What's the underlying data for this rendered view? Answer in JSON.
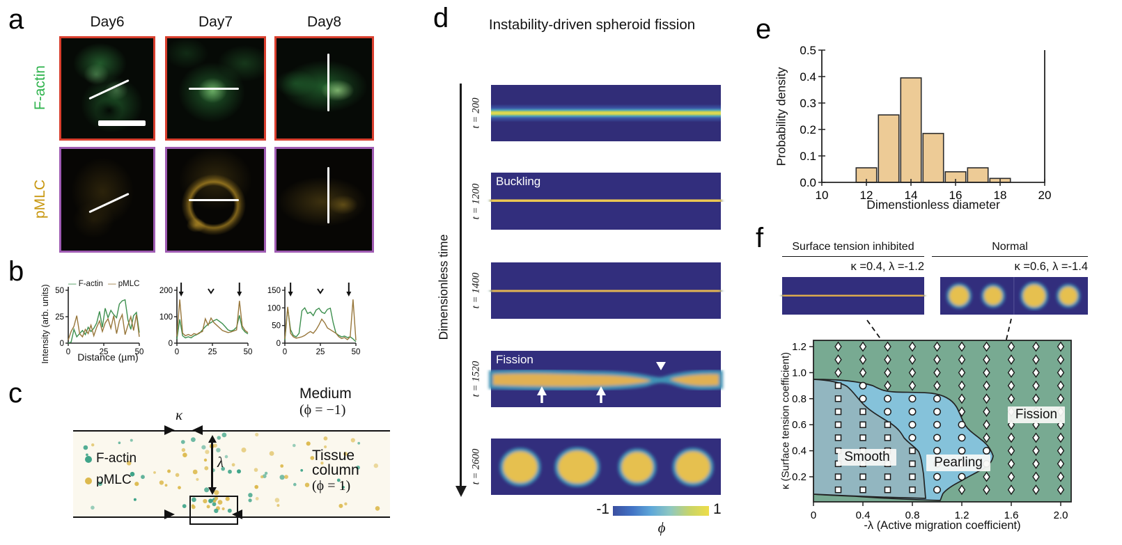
{
  "panels": {
    "a": {
      "label": "a",
      "columns": [
        "Day6",
        "Day7",
        "Day8"
      ],
      "rows": [
        {
          "label": "F-actin",
          "label_color": "#2fb34d",
          "frame_color": "#d93f2e"
        },
        {
          "label": "pMLC",
          "label_color": "#c8970f",
          "frame_color": "#9f5cb3"
        }
      ]
    },
    "b": {
      "label": "b",
      "ylabel": "Intensity (arb. units)",
      "xlabel": "Distance (µm)",
      "legend": [
        {
          "name": "F-actin",
          "color": "#3d8f4e"
        },
        {
          "name": "pMLC",
          "color": "#97763a"
        }
      ]
    },
    "c": {
      "label": "c",
      "kappa": "κ",
      "lambda": "λ",
      "medium_title": "Medium",
      "medium_phi": "(ϕ = −1)",
      "tissue_title_1": "Tissue",
      "tissue_title_2": "column",
      "tissue_phi": "(ϕ = 1)",
      "legend": [
        {
          "name": "F-actin",
          "color": "#3fa489"
        },
        {
          "name": "pMLC",
          "color": "#dcb94d"
        }
      ]
    },
    "d": {
      "label": "d",
      "title": "Instability-driven spheroid fission",
      "axis_label": "Dimensionless time",
      "snapshots": [
        {
          "t_label": "t = 200",
          "overlay": ""
        },
        {
          "t_label": "t = 1200",
          "overlay": "Buckling"
        },
        {
          "t_label": "t = 1400",
          "overlay": ""
        },
        {
          "t_label": "t = 1520",
          "overlay": "Fission"
        },
        {
          "t_label": "t = 2600",
          "overlay": ""
        }
      ],
      "colorbar": {
        "min": "-1",
        "max": "1",
        "symbol": "ϕ"
      }
    },
    "e": {
      "label": "e"
    },
    "f": {
      "label": "f",
      "left_header": "Surface tension inhibited",
      "right_header": "Normal",
      "left_params": "κ =0.4, λ =-1.2",
      "right_params": "κ =0.6, λ =-1.4",
      "region_labels": {
        "smooth": "Smooth",
        "pearling": "Pearling",
        "fission": "Fission"
      }
    }
  },
  "chart_data": [
    {
      "id": "chart-b1",
      "type": "line",
      "xlabel": "Distance (µm)",
      "ylabel": "Intensity (arb. units)",
      "xlim": [
        0,
        50
      ],
      "ylim": [
        0,
        50
      ],
      "xticks": [
        0,
        25,
        50
      ],
      "yticks": [
        0,
        25,
        50
      ],
      "x_step": 2,
      "series": [
        {
          "name": "F-actin",
          "color": "#3d8f4e",
          "values": [
            0,
            1,
            13,
            6,
            9,
            12,
            8,
            15,
            11,
            14,
            19,
            30,
            15,
            33,
            24,
            31,
            27,
            24,
            37,
            40,
            41,
            22,
            13,
            26,
            29,
            10
          ]
        },
        {
          "name": "pMLC",
          "color": "#97763a",
          "values": [
            3,
            11,
            16,
            26,
            9,
            6,
            13,
            9,
            17,
            7,
            15,
            21,
            11,
            19,
            23,
            14,
            26,
            9,
            21,
            27,
            8,
            17,
            25,
            12,
            27,
            6
          ]
        }
      ]
    },
    {
      "id": "chart-b2",
      "type": "line",
      "xlim": [
        0,
        50
      ],
      "ylim": [
        0,
        200
      ],
      "xticks": [
        0,
        25,
        50
      ],
      "yticks": [
        0,
        100,
        200
      ],
      "x_step": 2,
      "arrows": [
        3,
        44
      ],
      "carets": [
        24
      ],
      "series": [
        {
          "name": "F-actin",
          "color": "#3d8f4e",
          "values": [
            15,
            90,
            28,
            20,
            24,
            20,
            28,
            32,
            38,
            50,
            62,
            72,
            78,
            85,
            90,
            82,
            74,
            62,
            50,
            46,
            50,
            60,
            105,
            55,
            42,
            35
          ]
        },
        {
          "name": "pMLC",
          "color": "#97763a",
          "values": [
            25,
            165,
            38,
            28,
            33,
            28,
            36,
            33,
            40,
            44,
            92,
            68,
            95,
            78,
            68,
            58,
            48,
            44,
            40,
            42,
            46,
            50,
            160,
            65,
            48,
            40
          ]
        }
      ]
    },
    {
      "id": "chart-b3",
      "type": "line",
      "xlim": [
        0,
        50
      ],
      "ylim": [
        0,
        150
      ],
      "xticks": [
        0,
        25,
        50
      ],
      "yticks": [
        0,
        50,
        100,
        150
      ],
      "x_step": 2,
      "arrows": [
        4,
        45
      ],
      "carets": [
        25
      ],
      "series": [
        {
          "name": "F-actin",
          "color": "#3d8f4e",
          "values": [
            8,
            100,
            38,
            22,
            18,
            28,
            92,
            100,
            84,
            88,
            78,
            94,
            99,
            88,
            84,
            96,
            99,
            58,
            28,
            22,
            18,
            20,
            16,
            18,
            12,
            4
          ]
        },
        {
          "name": "pMLC",
          "color": "#97763a",
          "values": [
            12,
            103,
            28,
            18,
            14,
            16,
            18,
            22,
            28,
            33,
            28,
            38,
            52,
            68,
            58,
            43,
            38,
            33,
            28,
            18,
            13,
            16,
            10,
            18,
            124,
            8
          ]
        }
      ]
    },
    {
      "id": "chart-e",
      "type": "bar",
      "title": "",
      "xlabel": "Dimenstionless diameter",
      "ylabel": "Probability density",
      "categories": [
        12,
        13,
        14,
        15,
        16,
        17,
        18
      ],
      "values": [
        0.055,
        0.255,
        0.395,
        0.185,
        0.04,
        0.055,
        0.015
      ],
      "xlim": [
        10,
        20
      ],
      "ylim": [
        0,
        0.5
      ],
      "xticks": [
        10,
        12,
        14,
        16,
        18,
        20
      ],
      "ytick_labels": [
        "0.0",
        "0.1",
        "0.2",
        "0.3",
        "0.4",
        "0.5"
      ],
      "bar_color": "#edcb96",
      "bar_edge": "#2c2c2c"
    },
    {
      "id": "chart-f-phase",
      "type": "scatter",
      "xlabel": "-λ (Active migration coefficient)",
      "ylabel": "κ (Surface tension coefficient)",
      "xlim": [
        0,
        2.08
      ],
      "ylim": [
        0,
        1.25
      ],
      "xtick_labels": [
        "0",
        "0.4",
        "0.8",
        "1.2",
        "1.6",
        "2.0"
      ],
      "xtick_values": [
        0,
        0.4,
        0.8,
        1.2,
        1.6,
        2.0
      ],
      "ytick_labels": [
        "0.2",
        "0.4",
        "0.6",
        "0.8",
        "1.0",
        "1.2"
      ],
      "ytick_values": [
        0.2,
        0.4,
        0.6,
        0.8,
        1.0,
        1.2
      ],
      "marker_xs": [
        0.2,
        0.4,
        0.6,
        0.8,
        1.0,
        1.2,
        1.4,
        1.6,
        1.8,
        2.0
      ],
      "marker_ys": [
        1.2,
        1.1,
        1.0,
        0.9,
        0.8,
        0.7,
        0.6,
        0.5,
        0.4,
        0.3,
        0.2,
        0.1
      ],
      "rows": [
        "dddddddddd",
        "dddddddddd",
        "dddddddddd",
        "scdddddddd",
        "sccccddddd",
        "sscccddddd",
        "ssscccdddd",
        "ssscccdddd",
        "sssscccddd",
        "sssscccddd",
        "ssssccdddd",
        "sssscddddd"
      ],
      "regions": [
        {
          "name": "Smooth",
          "marker": "square",
          "color": "#92b6c0"
        },
        {
          "name": "Pearling",
          "marker": "circle",
          "color": "#85c2da"
        },
        {
          "name": "Fission",
          "marker": "diamond",
          "color": "#78aa92"
        }
      ]
    }
  ]
}
